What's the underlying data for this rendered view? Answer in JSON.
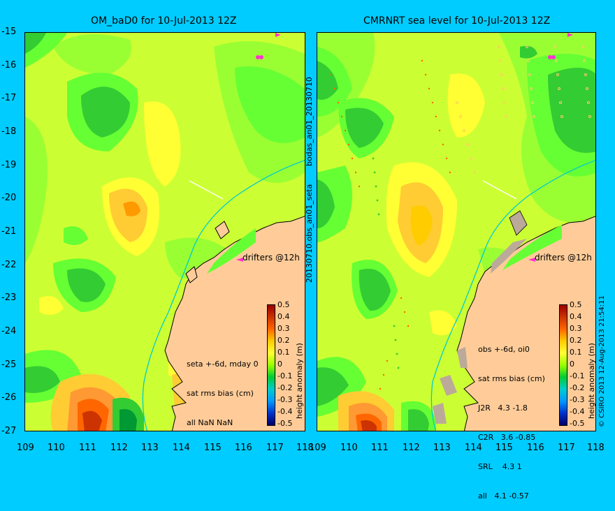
{
  "left_panel": {
    "title": "OM_baD0 for 10-Jul-2013 12Z",
    "stats": [
      "seta +-6d, mday 0",
      "sat rms bias (cm)",
      "all NaN NaN"
    ],
    "drifters_label": "drifters @12h"
  },
  "right_panel": {
    "title": "CMRNRT sea level  for 10-Jul-2013 12Z",
    "stats": [
      "obs +-6d, oi0",
      "sat rms bias (cm)",
      "J2R   4.3 -1.8",
      "C2R   3.6 -0.85",
      "SRL    4.3 1",
      "all   4.1 -0.57"
    ],
    "drifters_label": "drifters @12h"
  },
  "side_labels": {
    "top": "bodas_an01_20130710",
    "bottom": "20130710.obs_an01_seta"
  },
  "copyright": "© CSIRO 2013  12-Aug-2013 21:54:11",
  "y_axis": {
    "ticks": [
      "-15",
      "-16",
      "-17",
      "-18",
      "-19",
      "-20",
      "-21",
      "-22",
      "-23",
      "-24",
      "-25",
      "-26",
      "-27"
    ]
  },
  "x_axis": {
    "left_ticks": [
      "109",
      "110",
      "111",
      "112",
      "113",
      "114",
      "115",
      "116",
      "117",
      "118"
    ],
    "right_ticks": [
      "109",
      "110",
      "111",
      "112",
      "113",
      "114",
      "115",
      "116",
      "117",
      "118"
    ]
  },
  "colorbar": {
    "label": "height anomaly (m)",
    "ticks": [
      "0.5",
      "0.4",
      "0.3",
      "0.2",
      "0.1",
      "0",
      "-0.1",
      "-0.2",
      "-0.3",
      "-0.4",
      "-0.5"
    ]
  },
  "colors": {
    "background": "#00ccff",
    "land": "#ffcc99",
    "field_base": "#ccff33",
    "drifter": "#ff33cc"
  }
}
